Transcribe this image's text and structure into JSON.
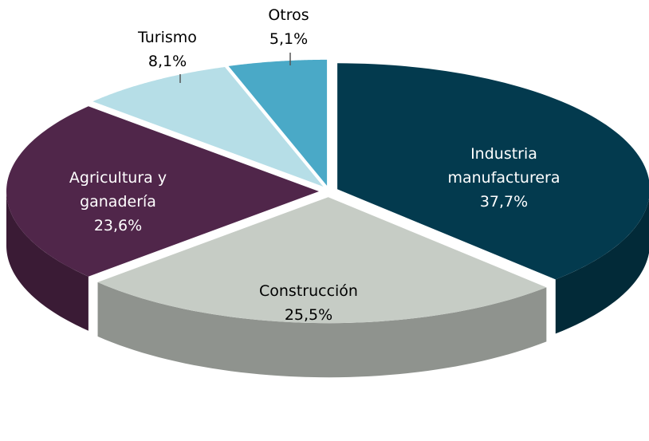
{
  "chart_data": {
    "type": "pie",
    "categories": [
      "Industria manufacturera",
      "Construcción",
      "Agricultura y ganadería",
      "Turismo",
      "Otros"
    ],
    "values": [
      37.7,
      25.5,
      23.6,
      8.1,
      5.1
    ],
    "value_labels": [
      "37,7%",
      "25,5%",
      "23,6%",
      "8,1%",
      "5,1%"
    ],
    "colors": [
      "#033a4e",
      "#c6ccc5",
      "#50264a",
      "#b6dee7",
      "#4aa9c7"
    ]
  }
}
